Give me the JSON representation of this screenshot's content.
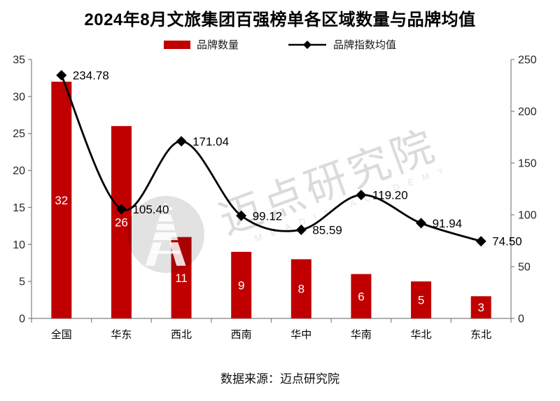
{
  "chart_data": {
    "type": "bar+line",
    "title": "2024年8月文旅集团百强榜单各区域数量与品牌均值",
    "categories": [
      "全国",
      "华东",
      "西北",
      "西南",
      "华中",
      "华南",
      "华北",
      "东北"
    ],
    "series": [
      {
        "name": "品牌数量",
        "type": "bar",
        "axis": "left",
        "color": "#c00000",
        "values": [
          32,
          26,
          11,
          9,
          8,
          6,
          5,
          3
        ]
      },
      {
        "name": "品牌指数均值",
        "type": "line",
        "axis": "right",
        "color": "#000000",
        "marker": "diamond",
        "values": [
          234.78,
          105.4,
          171.04,
          99.12,
          85.59,
          119.2,
          91.94,
          74.5
        ],
        "labels": [
          "234.78",
          "105.40",
          "171.04",
          "99.12",
          "85.59",
          "119.20",
          "91.94",
          "74.50"
        ]
      }
    ],
    "left_axis": {
      "min": 0,
      "max": 35,
      "step": 5
    },
    "right_axis": {
      "min": 0,
      "max": 250,
      "step": 50
    },
    "legend_position": "top",
    "grid": false
  },
  "source": "数据来源：迈点研究院",
  "watermark": {
    "text_cn": "迈点研究院",
    "text_en": "MEADIN ACADEMY",
    "logo_icon": "tower-in-circle"
  },
  "colors": {
    "bar": "#c00000",
    "line": "#000000",
    "axis": "#808080",
    "text": "#262626",
    "bar_label": "#ffffff"
  }
}
